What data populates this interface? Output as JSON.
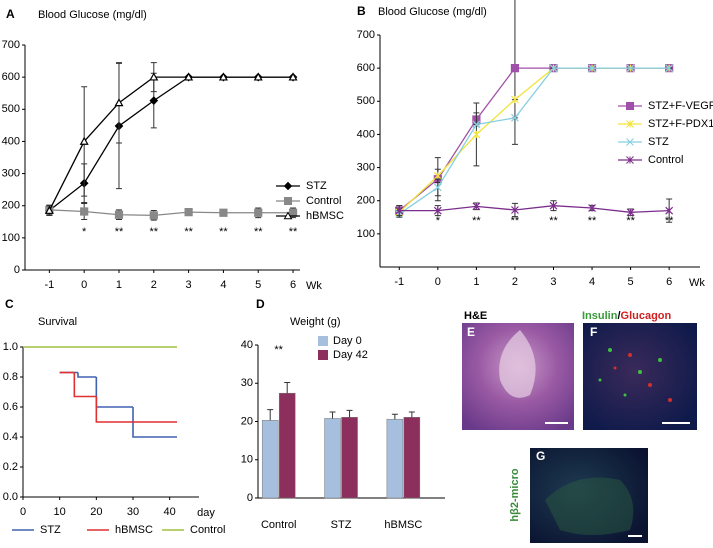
{
  "chart_data": [
    {
      "panel": "A",
      "type": "line",
      "title": "Blood Glucose (mg/dl)",
      "xlabel": "Wk",
      "x": [
        -1,
        0,
        1,
        2,
        3,
        4,
        5,
        6
      ],
      "xlim": [
        -1.7,
        6.2
      ],
      "xticks": [
        -1,
        0,
        1,
        2,
        3,
        4,
        5,
        6
      ],
      "ylim": [
        0,
        700
      ],
      "yticks": [
        0,
        100,
        200,
        300,
        400,
        500,
        600,
        700
      ],
      "series": [
        {
          "name": "STZ",
          "color": "#000000",
          "marker": "diamond",
          "values": [
            185,
            270,
            448,
            527,
            600,
            600,
            600,
            600
          ],
          "errors": [
            15,
            60,
            195,
            85,
            0,
            0,
            0,
            0
          ]
        },
        {
          "name": "Control",
          "color": "#888888",
          "marker": "square",
          "values": [
            187,
            182,
            172,
            170,
            180,
            178,
            178,
            178
          ],
          "errors": [
            15,
            25,
            15,
            15,
            8,
            8,
            15,
            15
          ]
        },
        {
          "name": "hBMSC",
          "color": "#000000",
          "marker": "triangle-open",
          "values": [
            185,
            400,
            520,
            600,
            600,
            600,
            600,
            600
          ],
          "errors": [
            15,
            170,
            125,
            45,
            0,
            0,
            0,
            0
          ]
        }
      ],
      "significance": [
        null,
        "*",
        "**",
        "**",
        "**",
        "**",
        "**",
        "**"
      ],
      "legend": "right"
    },
    {
      "panel": "B",
      "type": "line",
      "title": "Blood Glucose (mg/dl)",
      "xlabel": "Wk",
      "x": [
        -1,
        0,
        1,
        2,
        3,
        4,
        5,
        6
      ],
      "xlim": [
        -1.5,
        6.8
      ],
      "xticks": [
        -1,
        0,
        1,
        2,
        3,
        4,
        5,
        6
      ],
      "ylim": [
        0,
        700
      ],
      "yticks": [
        100,
        200,
        300,
        400,
        500,
        600,
        700
      ],
      "series": [
        {
          "name": "STZ+F-VEGF",
          "color": "#a050a8",
          "marker": "square",
          "values": [
            170,
            265,
            445,
            600,
            600,
            600,
            600,
            600
          ],
          "errors": [
            15,
            65,
            20,
            230,
            0,
            0,
            0,
            0
          ]
        },
        {
          "name": "STZ+F-PDX1",
          "color": "#f2e33a",
          "marker": "star",
          "values": [
            165,
            275,
            400,
            505,
            600,
            600,
            600,
            600
          ],
          "errors": [
            10,
            20,
            95,
            0,
            0,
            0,
            0,
            0
          ]
        },
        {
          "name": "STZ",
          "color": "#86cfe0",
          "marker": "x",
          "values": [
            160,
            240,
            430,
            450,
            600,
            600,
            600,
            600
          ],
          "errors": [
            10,
            25,
            0,
            0,
            0,
            0,
            0,
            0
          ]
        },
        {
          "name": "Control",
          "color": "#7b2d8b",
          "marker": "star",
          "values": [
            170,
            170,
            183,
            172,
            185,
            178,
            165,
            170
          ],
          "errors": [
            15,
            15,
            10,
            20,
            15,
            8,
            10,
            35
          ]
        }
      ],
      "significance": [
        null,
        "*",
        "**",
        "**",
        "**",
        "**",
        "**",
        "**"
      ],
      "legend": "right"
    },
    {
      "panel": "C",
      "type": "step",
      "title": "Survival",
      "xlabel": "day",
      "xlim": [
        0,
        48
      ],
      "xticks": [
        0,
        10,
        20,
        30,
        40
      ],
      "ylim": [
        0,
        1
      ],
      "yticks": [
        {
          "value": 0,
          "label": "0.0"
        },
        0.2,
        0.4,
        0.6,
        0.8,
        {
          "value": 1,
          "label": "1.0"
        }
      ],
      "series": [
        {
          "name": "STZ",
          "color": "#4060b0",
          "x": [
            10,
            15,
            20,
            30,
            42
          ],
          "values": [
            0.83,
            0.8,
            0.6,
            0.4,
            0.4
          ]
        },
        {
          "name": "hBMSC",
          "color": "#e03030",
          "x": [
            10,
            14,
            20,
            42
          ],
          "values": [
            0.83,
            0.67,
            0.5,
            0.5
          ]
        },
        {
          "name": "Control",
          "color": "#a0c040",
          "x": [
            0,
            42
          ],
          "values": [
            1,
            1
          ]
        }
      ],
      "legend": "bottom"
    },
    {
      "panel": "D",
      "type": "bar",
      "title": "Weight (g)",
      "categories": [
        "Control",
        "STZ",
        "hBMSC"
      ],
      "ylim": [
        0,
        40
      ],
      "yticks": [
        0,
        10,
        20,
        30,
        40
      ],
      "series": [
        {
          "name": "Day 0",
          "color": "#a7bfdf",
          "values": [
            20.3,
            20.8,
            20.6
          ],
          "errors": [
            2.8,
            1.7,
            1.3
          ]
        },
        {
          "name": "Day 42",
          "color": "#8c2f5c",
          "values": [
            27.4,
            21.1,
            21.1
          ],
          "errors": [
            2.8,
            1.8,
            1.4
          ]
        }
      ],
      "significance": [
        "**",
        null,
        null
      ],
      "legend": "top"
    }
  ],
  "images": [
    {
      "label": "E",
      "caption": "H&E"
    },
    {
      "label": "F",
      "caption_parts": [
        "Insulin",
        "/",
        "Glucagon"
      ]
    },
    {
      "label": "G",
      "caption": "hβ2-micro"
    }
  ]
}
